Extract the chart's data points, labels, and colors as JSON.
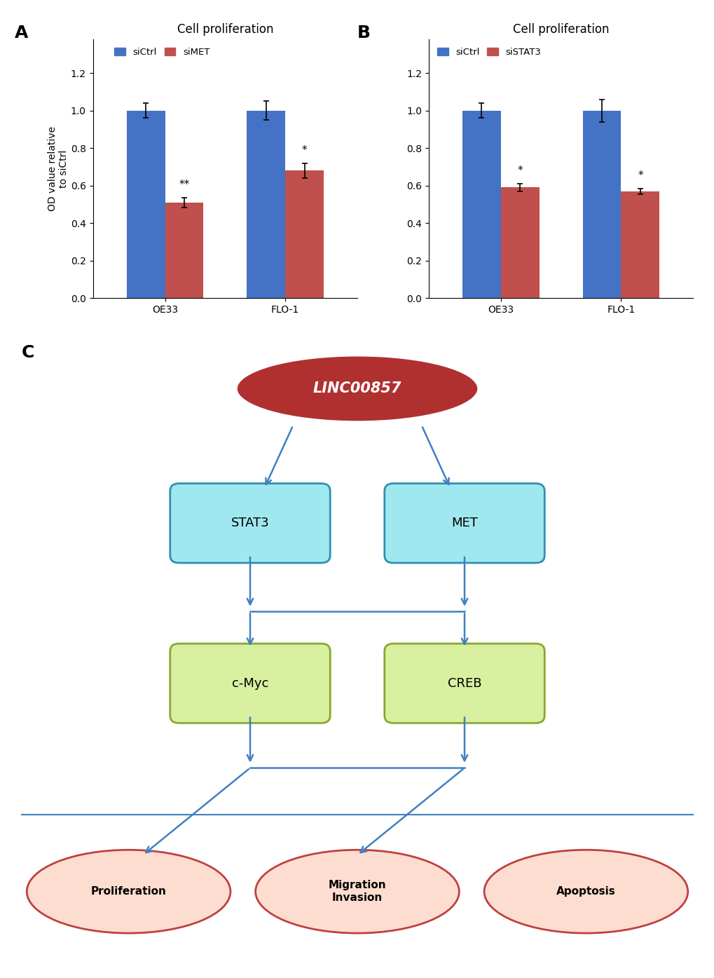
{
  "panel_A": {
    "title": "Cell proliferation",
    "label": "A",
    "groups": [
      "OE33",
      "FLO-1"
    ],
    "ctrl_values": [
      1.0,
      1.0
    ],
    "si_values": [
      0.51,
      0.68
    ],
    "ctrl_errors": [
      0.04,
      0.05
    ],
    "si_errors": [
      0.025,
      0.04
    ],
    "si_label": "siMET",
    "ctrl_color": "#4472C4",
    "si_color": "#C0504D",
    "sig_labels": [
      "**",
      "*"
    ],
    "ylabel": "OD value relative\nto siCtrl",
    "ylim": [
      0,
      1.38
    ],
    "yticks": [
      0,
      0.2,
      0.4,
      0.6,
      0.8,
      1.0,
      1.2
    ]
  },
  "panel_B": {
    "title": "Cell proliferation",
    "label": "B",
    "groups": [
      "OE33",
      "FLO-1"
    ],
    "ctrl_values": [
      1.0,
      1.0
    ],
    "si_values": [
      0.59,
      0.57
    ],
    "ctrl_errors": [
      0.04,
      0.06
    ],
    "si_errors": [
      0.02,
      0.015
    ],
    "si_label": "siSTAT3",
    "ctrl_color": "#4472C4",
    "si_color": "#C0504D",
    "sig_labels": [
      "*",
      "*"
    ],
    "ylabel": "",
    "ylim": [
      0,
      1.38
    ],
    "yticks": [
      0,
      0.2,
      0.4,
      0.6,
      0.8,
      1.0,
      1.2
    ]
  },
  "panel_C": {
    "label": "C",
    "linc_label": "LINC00857",
    "linc_fill": "#B03030",
    "linc_edge": "#ffffff",
    "box1_label": "STAT3",
    "box2_label": "MET",
    "box_fill": "#A0E8F0",
    "box_edge": "#3090B0",
    "box3_label": "c-Myc",
    "box4_label": "CREB",
    "box34_fill": "#D8F0A0",
    "box34_edge": "#88A830",
    "ellipse1_label": "Proliferation",
    "ellipse2_label": "Migration\nInvasion",
    "ellipse3_label": "Apoptosis",
    "ellipse_fill": "#FDDDD0",
    "ellipse_edge": "#C04040",
    "arrow_color": "#4080C0",
    "line_color": "#4080C0"
  },
  "background_color": "#ffffff"
}
